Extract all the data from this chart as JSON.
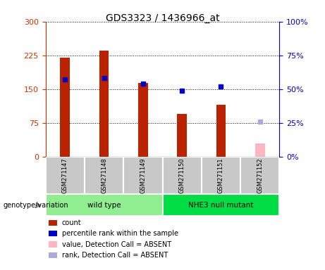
{
  "title": "GDS3323 / 1436966_at",
  "samples": [
    "GSM271147",
    "GSM271148",
    "GSM271149",
    "GSM271150",
    "GSM271151",
    "GSM271152"
  ],
  "counts": [
    220,
    235,
    163,
    95,
    115,
    30
  ],
  "percentiles": [
    57,
    58,
    54,
    49,
    52,
    26
  ],
  "absent": [
    false,
    false,
    false,
    false,
    false,
    true
  ],
  "groups": [
    {
      "label": "wild type",
      "start": 0,
      "end": 3,
      "color": "#90EE90"
    },
    {
      "label": "NHE3 null mutant",
      "start": 3,
      "end": 6,
      "color": "#00DD44"
    }
  ],
  "left_yticks": [
    0,
    75,
    150,
    225,
    300
  ],
  "right_yticks": [
    0,
    25,
    50,
    75,
    100
  ],
  "bar_color_present": "#BB2200",
  "bar_color_absent": "#FFB6C1",
  "dot_color_present": "#0000CC",
  "dot_color_absent": "#AAAADD",
  "bar_width": 0.25,
  "ylim_left": [
    0,
    300
  ],
  "ylim_right": [
    0,
    100
  ],
  "left_ylabel_color": "#CC3300",
  "right_ylabel_color": "#0000CC",
  "legend_items": [
    {
      "label": "count",
      "color": "#BB2200"
    },
    {
      "label": "percentile rank within the sample",
      "color": "#0000CC"
    },
    {
      "label": "value, Detection Call = ABSENT",
      "color": "#FFB6C1"
    },
    {
      "label": "rank, Detection Call = ABSENT",
      "color": "#AAAADD"
    }
  ],
  "genotype_label": "genotype/variation"
}
